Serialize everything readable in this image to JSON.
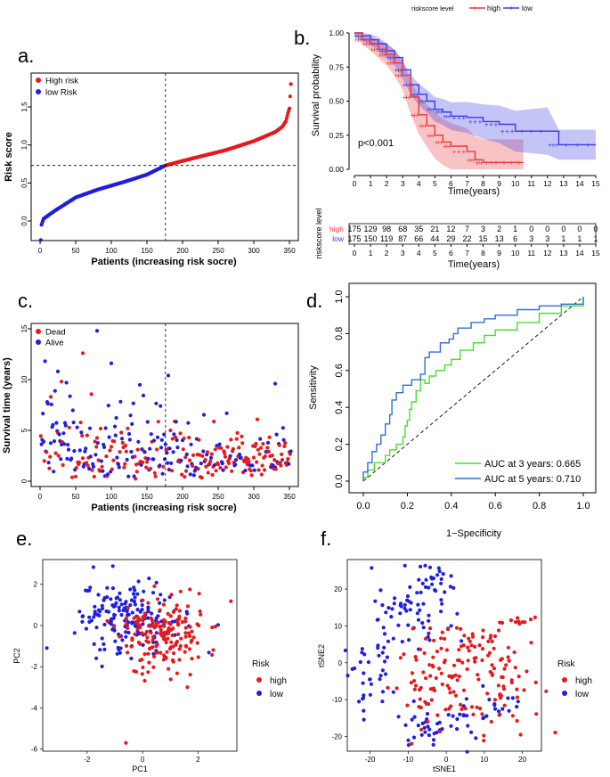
{
  "figure": {
    "label_a": "a.",
    "label_b": "b.",
    "label_c": "c.",
    "label_d": "d.",
    "label_e": "e.",
    "label_f": "f."
  },
  "colors": {
    "red": "#e41a1c",
    "blue": "#1f1fe0",
    "km_red": "#e8373c",
    "km_blue": "#3a3ae6",
    "auc3": "#4ddc2e",
    "auc5": "#2f6fd6"
  },
  "chart_data": [
    {
      "id": "a",
      "type": "scatter",
      "xlabel": "Patients (increasing risk socre)",
      "ylabel": "Risk score",
      "xticks": [
        "0",
        "50",
        "100",
        "150",
        "200",
        "250",
        "300",
        "350"
      ],
      "yticks": [
        "0.0",
        "0.5",
        "1.0",
        "1.5"
      ],
      "xlim": [
        0,
        352
      ],
      "ylim": [
        -0.3,
        1.85
      ],
      "cutoff_x": 176,
      "cutoff_y": 0.73,
      "legend": [
        "High risk",
        "low Risk"
      ],
      "curve_knots": [
        [
          1,
          -0.25
        ],
        [
          2,
          -0.05
        ],
        [
          5,
          0.03
        ],
        [
          20,
          0.13
        ],
        [
          50,
          0.31
        ],
        [
          80,
          0.41
        ],
        [
          120,
          0.52
        ],
        [
          150,
          0.61
        ],
        [
          176,
          0.73
        ],
        [
          200,
          0.79
        ],
        [
          230,
          0.86
        ],
        [
          260,
          0.93
        ],
        [
          300,
          1.05
        ],
        [
          330,
          1.17
        ],
        [
          340,
          1.24
        ],
        [
          345,
          1.31
        ],
        [
          348,
          1.42
        ],
        [
          350,
          1.48
        ],
        [
          352,
          1.8
        ]
      ]
    },
    {
      "id": "b",
      "type": "line",
      "legend_title": "riskscore level",
      "legend": [
        "high",
        "low"
      ],
      "xlabel": "Time(years)",
      "ylabel": "Survival probability",
      "xticks": [
        "0",
        "1",
        "2",
        "3",
        "4",
        "5",
        "6",
        "7",
        "8",
        "9",
        "10",
        "11",
        "12",
        "13",
        "14",
        "15"
      ],
      "yticks": [
        "0.00",
        "0.25",
        "0.50",
        "0.75",
        "1.00"
      ],
      "pvalue": "p<0.001",
      "high": [
        [
          0,
          1
        ],
        [
          0.5,
          0.95
        ],
        [
          1,
          0.92
        ],
        [
          1.5,
          0.88
        ],
        [
          2,
          0.84
        ],
        [
          2.5,
          0.78
        ],
        [
          3,
          0.69
        ],
        [
          3.5,
          0.53
        ],
        [
          4,
          0.4
        ],
        [
          4.5,
          0.32
        ],
        [
          5,
          0.25
        ],
        [
          5.5,
          0.2
        ],
        [
          6,
          0.17
        ],
        [
          7,
          0.13
        ],
        [
          7.5,
          0.07
        ],
        [
          8,
          0.05
        ],
        [
          9,
          0.05
        ],
        [
          10.5,
          0.05
        ]
      ],
      "low": [
        [
          0,
          1
        ],
        [
          0.5,
          0.98
        ],
        [
          1,
          0.95
        ],
        [
          1.5,
          0.92
        ],
        [
          2,
          0.87
        ],
        [
          2.5,
          0.82
        ],
        [
          3,
          0.73
        ],
        [
          3.5,
          0.62
        ],
        [
          4,
          0.55
        ],
        [
          4.5,
          0.5
        ],
        [
          5,
          0.44
        ],
        [
          5.5,
          0.42
        ],
        [
          6,
          0.39
        ],
        [
          7,
          0.38
        ],
        [
          8,
          0.35
        ],
        [
          9,
          0.33
        ],
        [
          10,
          0.28
        ],
        [
          12,
          0.28
        ],
        [
          12.7,
          0.18
        ],
        [
          15,
          0.18
        ]
      ],
      "risk_table": {
        "title": "riskscore level",
        "rows": [
          "high",
          "low"
        ],
        "high": [
          "175",
          "129",
          "98",
          "68",
          "35",
          "21",
          "12",
          "7",
          "3",
          "2",
          "1",
          "0",
          "0",
          "0",
          "0",
          "0"
        ],
        "low": [
          "175",
          "150",
          "119",
          "87",
          "66",
          "44",
          "29",
          "22",
          "15",
          "13",
          "6",
          "3",
          "3",
          "1",
          "1",
          "1"
        ],
        "xlabel": "Time(years)"
      }
    },
    {
      "id": "c",
      "type": "scatter",
      "xlabel": "Patients (increasing risk socre)",
      "ylabel": "Survival time (years)",
      "xticks": [
        "0",
        "50",
        "100",
        "150",
        "200",
        "250",
        "300",
        "350"
      ],
      "yticks": [
        "0",
        "5",
        "10",
        "15"
      ],
      "xlim": [
        0,
        352
      ],
      "ylim": [
        0,
        15
      ],
      "cutoff_x": 176,
      "legend": [
        "Dead",
        "Alive"
      ]
    },
    {
      "id": "d",
      "type": "line",
      "xlabel": "1−Specificity",
      "ylabel": "Sensitivity",
      "xticks": [
        "0.0",
        "0.2",
        "0.4",
        "0.6",
        "0.8",
        "1.0"
      ],
      "yticks": [
        "0.0",
        "0.2",
        "0.4",
        "0.6",
        "0.8",
        "1.0"
      ],
      "auc3_label": "AUC at 3 years: 0.665",
      "auc5_label": "AUC at 5 years: 0.710",
      "auc3": [
        [
          0,
          0
        ],
        [
          0,
          0.02
        ],
        [
          0.02,
          0.06
        ],
        [
          0.05,
          0.1
        ],
        [
          0.1,
          0.14
        ],
        [
          0.12,
          0.17
        ],
        [
          0.15,
          0.2
        ],
        [
          0.18,
          0.24
        ],
        [
          0.19,
          0.3
        ],
        [
          0.2,
          0.33
        ],
        [
          0.21,
          0.39
        ],
        [
          0.22,
          0.43
        ],
        [
          0.24,
          0.49
        ],
        [
          0.26,
          0.55
        ],
        [
          0.28,
          0.53
        ],
        [
          0.3,
          0.57
        ],
        [
          0.33,
          0.6
        ],
        [
          0.37,
          0.63
        ],
        [
          0.4,
          0.66
        ],
        [
          0.44,
          0.71
        ],
        [
          0.5,
          0.75
        ],
        [
          0.55,
          0.79
        ],
        [
          0.6,
          0.82
        ],
        [
          0.7,
          0.86
        ],
        [
          0.8,
          0.91
        ],
        [
          0.9,
          0.95
        ],
        [
          1,
          1
        ]
      ],
      "auc5": [
        [
          0,
          0
        ],
        [
          0,
          0.05
        ],
        [
          0.02,
          0.1
        ],
        [
          0.04,
          0.16
        ],
        [
          0.06,
          0.2
        ],
        [
          0.08,
          0.25
        ],
        [
          0.1,
          0.31
        ],
        [
          0.12,
          0.36
        ],
        [
          0.13,
          0.44
        ],
        [
          0.15,
          0.48
        ],
        [
          0.18,
          0.52
        ],
        [
          0.22,
          0.55
        ],
        [
          0.26,
          0.58
        ],
        [
          0.28,
          0.67
        ],
        [
          0.3,
          0.7
        ],
        [
          0.35,
          0.75
        ],
        [
          0.39,
          0.77
        ],
        [
          0.41,
          0.8
        ],
        [
          0.43,
          0.83
        ],
        [
          0.49,
          0.86
        ],
        [
          0.55,
          0.88
        ],
        [
          0.6,
          0.9
        ],
        [
          0.7,
          0.93
        ],
        [
          0.8,
          0.95
        ],
        [
          0.9,
          0.96
        ],
        [
          0.97,
          0.96
        ],
        [
          1,
          1
        ]
      ]
    },
    {
      "id": "e",
      "type": "scatter",
      "xlabel": "PC1",
      "ylabel": "PC2",
      "xticks": [
        "-2",
        "0",
        "2"
      ],
      "yticks": [
        "-6",
        "-4",
        "-2",
        "0",
        "2"
      ],
      "xlim": [
        -3.6,
        3.4
      ],
      "ylim": [
        -6.1,
        3.2
      ],
      "legend_title": "Risk",
      "legend": [
        "high",
        "low"
      ]
    },
    {
      "id": "f",
      "type": "scatter",
      "xlabel": "tSNE1",
      "ylabel": "tSNE2",
      "xticks": [
        "-20",
        "-10",
        "0",
        "10",
        "20"
      ],
      "yticks": [
        "-20",
        "-10",
        "0",
        "10",
        "20"
      ],
      "xlim": [
        -26,
        25
      ],
      "ylim": [
        -24,
        28
      ],
      "legend_title": "Risk",
      "legend": [
        "high",
        "low"
      ]
    }
  ]
}
